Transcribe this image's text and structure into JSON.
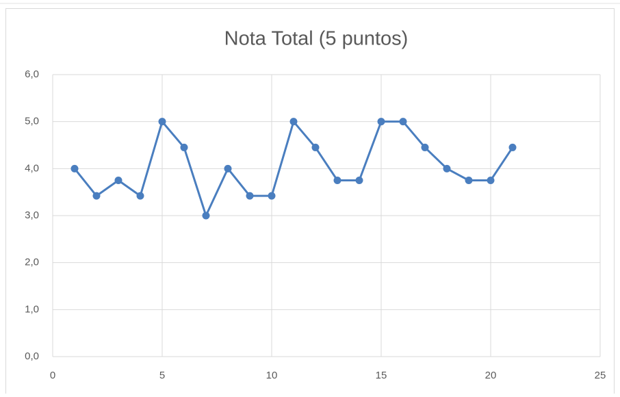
{
  "chart_data": {
    "type": "line",
    "title": "Nota Total (5 puntos)",
    "x": [
      1,
      2,
      3,
      4,
      5,
      6,
      7,
      8,
      9,
      10,
      11,
      12,
      13,
      14,
      15,
      16,
      17,
      18,
      19,
      20,
      21
    ],
    "values": [
      4.0,
      3.42,
      3.75,
      3.42,
      5.0,
      4.45,
      3.0,
      4.0,
      3.42,
      3.42,
      5.0,
      4.45,
      3.75,
      3.75,
      5.0,
      5.0,
      4.45,
      4.0,
      3.75,
      3.75,
      4.45
    ],
    "color": "#4a7ebf",
    "xlim": [
      0,
      25
    ],
    "xticks": [
      0,
      5,
      10,
      15,
      20,
      25
    ],
    "ylim": [
      0,
      6
    ],
    "yticks": [
      {
        "value": 0,
        "label": "0,0"
      },
      {
        "value": 1,
        "label": "1,0"
      },
      {
        "value": 2,
        "label": "2,0"
      },
      {
        "value": 3,
        "label": "3,0"
      },
      {
        "value": 4,
        "label": "4,0"
      },
      {
        "value": 5,
        "label": "5,0"
      },
      {
        "value": 6,
        "label": "6,0"
      }
    ],
    "grid": true
  }
}
